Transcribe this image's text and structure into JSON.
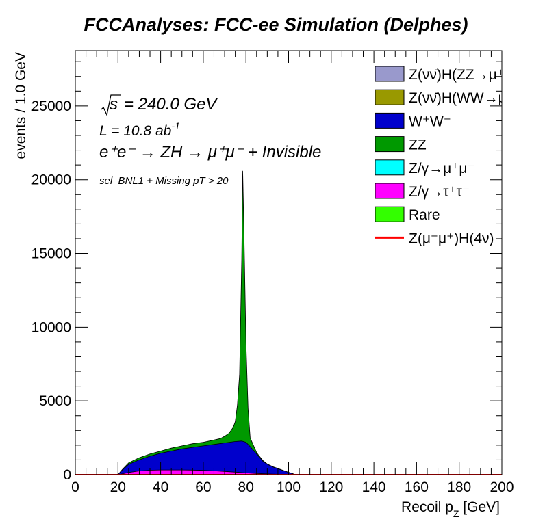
{
  "chart_data": {
    "type": "bar",
    "title": "FCCAnalyses: FCC-ee Simulation (Delphes)",
    "xlabel": "Recoil p_Z [GeV]",
    "ylabel": "events / 1.0 GeV",
    "xlim": [
      0,
      200
    ],
    "ylim": [
      0,
      28750
    ],
    "x_ticks": [
      0,
      20,
      40,
      60,
      80,
      100,
      120,
      140,
      160,
      180,
      200
    ],
    "y_ticks": [
      0,
      5000,
      10000,
      15000,
      20000,
      25000
    ],
    "stacked": true,
    "legend_position": "top-right",
    "annotations": {
      "sqrt_s": "= 240.0 GeV",
      "lumi": "L = 10.8 ab",
      "lumi_sup": "-1",
      "process": "e⁺e⁻ → ZH → μ⁺μ⁻ + Invisible",
      "selection": "sel_BNL1 + Missing pT > 20"
    },
    "legend": [
      {
        "label": "Z(νν̄)H(ZZ→μ⁺μ⁻ν⁺",
        "color": "#9999cc",
        "kind": "box"
      },
      {
        "label": "Z(νν̄)H(WW→μ⁺νμ",
        "color": "#999900",
        "kind": "box"
      },
      {
        "label": "W⁺W⁻",
        "color": "#0000cc",
        "kind": "box"
      },
      {
        "label": "ZZ",
        "color": "#009900",
        "kind": "box"
      },
      {
        "label": "Z/γ→μ⁺μ⁻",
        "color": "#00ffff",
        "kind": "box"
      },
      {
        "label": "Z/γ→τ⁺τ⁻",
        "color": "#ff00ff",
        "kind": "box"
      },
      {
        "label": "Rare",
        "color": "#33ff00",
        "kind": "box"
      },
      {
        "label": "Z(μ⁻μ⁺)H(4ν)",
        "color": "#ff0000",
        "kind": "line"
      }
    ],
    "series": [
      {
        "name": "Z/γ→τ⁺τ⁻",
        "color": "#ff00ff",
        "points": [
          [
            20,
            0
          ],
          [
            22,
            50
          ],
          [
            25,
            150
          ],
          [
            30,
            250
          ],
          [
            35,
            300
          ],
          [
            40,
            320
          ],
          [
            45,
            320
          ],
          [
            50,
            320
          ],
          [
            55,
            310
          ],
          [
            60,
            290
          ],
          [
            65,
            260
          ],
          [
            70,
            220
          ],
          [
            75,
            170
          ],
          [
            80,
            120
          ],
          [
            85,
            80
          ],
          [
            90,
            50
          ],
          [
            95,
            30
          ],
          [
            100,
            10
          ],
          [
            103,
            0
          ]
        ]
      },
      {
        "name": "W⁺W⁻",
        "color": "#0000cc",
        "points": [
          [
            20,
            0
          ],
          [
            22,
            300
          ],
          [
            25,
            700
          ],
          [
            30,
            1000
          ],
          [
            35,
            1250
          ],
          [
            40,
            1450
          ],
          [
            45,
            1600
          ],
          [
            50,
            1750
          ],
          [
            55,
            1850
          ],
          [
            60,
            1950
          ],
          [
            65,
            2050
          ],
          [
            70,
            2150
          ],
          [
            75,
            2250
          ],
          [
            78,
            2280
          ],
          [
            80,
            2200
          ],
          [
            82,
            1900
          ],
          [
            85,
            1400
          ],
          [
            88,
            900
          ],
          [
            90,
            700
          ],
          [
            93,
            500
          ],
          [
            95,
            400
          ],
          [
            98,
            250
          ],
          [
            100,
            150
          ],
          [
            102,
            60
          ],
          [
            103,
            0
          ]
        ]
      },
      {
        "name": "ZZ",
        "color": "#009900",
        "points": [
          [
            20,
            0
          ],
          [
            22,
            350
          ],
          [
            25,
            800
          ],
          [
            30,
            1150
          ],
          [
            35,
            1400
          ],
          [
            40,
            1600
          ],
          [
            45,
            1800
          ],
          [
            50,
            1950
          ],
          [
            55,
            2100
          ],
          [
            60,
            2200
          ],
          [
            65,
            2350
          ],
          [
            68,
            2450
          ],
          [
            70,
            2600
          ],
          [
            72,
            2800
          ],
          [
            74,
            3200
          ],
          [
            75,
            3600
          ],
          [
            76,
            4700
          ],
          [
            77,
            6800
          ],
          [
            78,
            14500
          ],
          [
            78.5,
            20600
          ],
          [
            79,
            17000
          ],
          [
            80,
            9000
          ],
          [
            81,
            4500
          ],
          [
            82,
            2500
          ],
          [
            85,
            1500
          ],
          [
            88,
            950
          ],
          [
            90,
            720
          ],
          [
            93,
            520
          ],
          [
            95,
            420
          ],
          [
            98,
            260
          ],
          [
            100,
            160
          ],
          [
            102,
            70
          ],
          [
            103,
            0
          ]
        ]
      },
      {
        "name": "Z(μ⁻μ⁺)H(4ν)",
        "color": "#ff0000",
        "points": [
          [
            0,
            0
          ],
          [
            200,
            0
          ]
        ]
      }
    ]
  }
}
